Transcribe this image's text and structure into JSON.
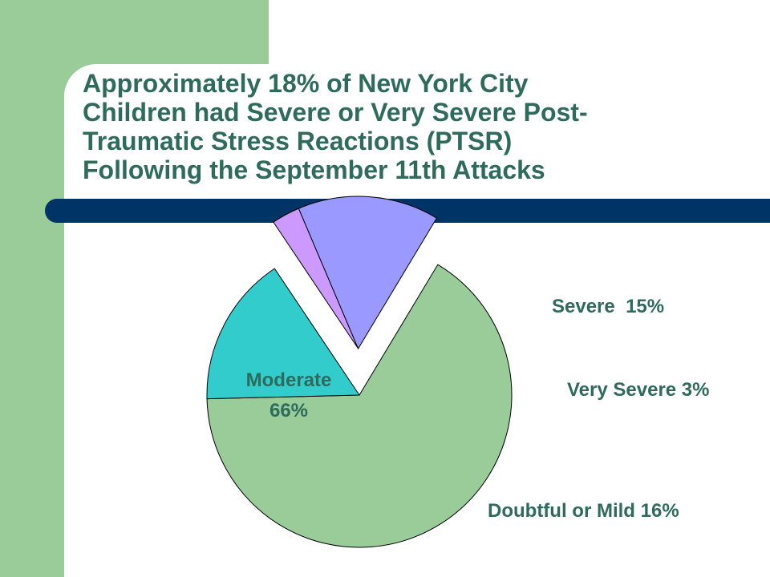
{
  "slide": {
    "title_lines": [
      "Approximately 18% of New York City",
      "Children had Severe or Very Severe Post-",
      "Traumatic Stress Reactions (PTSR)",
      "Following the September 11th Attacks"
    ]
  },
  "colors": {
    "side_bar": "#99cc99",
    "title_text": "#2e6b5c",
    "rule": "#003366",
    "label_text": "#2e6b5c",
    "moderate": "#99cc99",
    "doubtful_or_mild": "#33cccc",
    "very_severe": "#cc99ff",
    "severe": "#9999ff"
  },
  "chart_data": {
    "type": "pie",
    "title": "",
    "slices": [
      {
        "name": "Moderate",
        "value": 66,
        "color": "#99cc99",
        "label_lines": [
          "Moderate",
          "66%"
        ]
      },
      {
        "name": "Doubtful or Mild",
        "value": 16,
        "color": "#33cccc",
        "label_lines": [
          "Doubtful or Mild 16%"
        ]
      },
      {
        "name": "Very Severe",
        "value": 3,
        "color": "#cc99ff",
        "label_lines": [
          "Very Severe 3%"
        ]
      },
      {
        "name": "Severe",
        "value": 15,
        "color": "#9999ff",
        "label_lines": [
          "Severe  15%"
        ]
      }
    ],
    "exploded": [
      "Severe",
      "Very Severe"
    ],
    "legend": "none"
  }
}
